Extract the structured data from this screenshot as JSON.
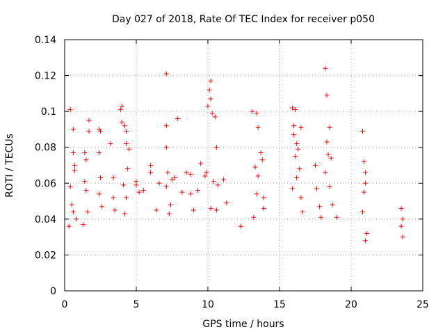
{
  "chart_data": {
    "type": "scatter",
    "title": "Day 027 of 2018, Rate Of TEC Index for receiver p050",
    "xlabel": "GPS time / hours",
    "ylabel": "ROTI / TECUs",
    "xlim": [
      0,
      25
    ],
    "ylim": [
      0,
      0.14
    ],
    "x_ticks": [
      0,
      5,
      10,
      15,
      20,
      25
    ],
    "x_tick_labels": [
      "0",
      "5",
      "10",
      "15",
      "20",
      "25"
    ],
    "y_ticks": [
      0,
      0.02,
      0.04,
      0.06,
      0.08,
      0.1,
      0.12,
      0.14
    ],
    "y_tick_labels": [
      "0",
      "0.02",
      "0.04",
      "0.06",
      "0.08",
      "0.1",
      "0.12",
      "0.14"
    ],
    "grid": true,
    "marker": "+",
    "marker_color": "#ff0000",
    "series": [
      {
        "name": "ROTI",
        "points": [
          [
            0.4,
            0.101
          ],
          [
            0.6,
            0.09
          ],
          [
            0.6,
            0.077
          ],
          [
            0.7,
            0.07
          ],
          [
            0.7,
            0.067
          ],
          [
            0.4,
            0.058
          ],
          [
            0.5,
            0.048
          ],
          [
            0.6,
            0.044
          ],
          [
            0.3,
            0.036
          ],
          [
            0.8,
            0.04
          ],
          [
            1.4,
            0.077
          ],
          [
            1.5,
            0.073
          ],
          [
            1.7,
            0.089
          ],
          [
            1.7,
            0.095
          ],
          [
            1.4,
            0.061
          ],
          [
            1.5,
            0.056
          ],
          [
            1.6,
            0.044
          ],
          [
            1.3,
            0.037
          ],
          [
            2.4,
            0.09
          ],
          [
            2.5,
            0.089
          ],
          [
            2.4,
            0.077
          ],
          [
            2.5,
            0.063
          ],
          [
            2.4,
            0.054
          ],
          [
            2.6,
            0.047
          ],
          [
            3.2,
            0.082
          ],
          [
            3.4,
            0.063
          ],
          [
            3.4,
            0.052
          ],
          [
            3.5,
            0.045
          ],
          [
            3.9,
            0.101
          ],
          [
            4.0,
            0.103
          ],
          [
            4.0,
            0.094
          ],
          [
            4.2,
            0.092
          ],
          [
            4.3,
            0.089
          ],
          [
            4.3,
            0.082
          ],
          [
            4.5,
            0.079
          ],
          [
            4.4,
            0.068
          ],
          [
            4.1,
            0.059
          ],
          [
            4.3,
            0.052
          ],
          [
            4.2,
            0.043
          ],
          [
            5.0,
            0.061
          ],
          [
            5.0,
            0.059
          ],
          [
            5.2,
            0.055
          ],
          [
            5.5,
            0.056
          ],
          [
            6.0,
            0.07
          ],
          [
            6.0,
            0.066
          ],
          [
            6.6,
            0.06
          ],
          [
            6.4,
            0.045
          ],
          [
            7.1,
            0.121
          ],
          [
            7.1,
            0.092
          ],
          [
            7.1,
            0.08
          ],
          [
            7.2,
            0.066
          ],
          [
            7.1,
            0.058
          ],
          [
            7.5,
            0.062
          ],
          [
            7.7,
            0.063
          ],
          [
            7.9,
            0.096
          ],
          [
            7.3,
            0.043
          ],
          [
            7.4,
            0.048
          ],
          [
            8.2,
            0.055
          ],
          [
            8.5,
            0.066
          ],
          [
            8.8,
            0.065
          ],
          [
            8.8,
            0.054
          ],
          [
            9.0,
            0.045
          ],
          [
            9.3,
            0.056
          ],
          [
            9.5,
            0.071
          ],
          [
            9.8,
            0.064
          ],
          [
            9.9,
            0.066
          ],
          [
            10.1,
            0.112
          ],
          [
            10.2,
            0.117
          ],
          [
            10.2,
            0.107
          ],
          [
            10.3,
            0.099
          ],
          [
            10.0,
            0.103
          ],
          [
            10.5,
            0.097
          ],
          [
            10.6,
            0.08
          ],
          [
            10.4,
            0.061
          ],
          [
            10.7,
            0.059
          ],
          [
            10.2,
            0.046
          ],
          [
            10.6,
            0.045
          ],
          [
            11.1,
            0.062
          ],
          [
            11.3,
            0.049
          ],
          [
            12.3,
            0.036
          ],
          [
            13.1,
            0.1
          ],
          [
            13.4,
            0.099
          ],
          [
            13.5,
            0.091
          ],
          [
            13.7,
            0.077
          ],
          [
            13.8,
            0.073
          ],
          [
            13.3,
            0.069
          ],
          [
            13.5,
            0.064
          ],
          [
            13.4,
            0.054
          ],
          [
            13.9,
            0.052
          ],
          [
            13.9,
            0.046
          ],
          [
            13.2,
            0.041
          ],
          [
            15.9,
            0.102
          ],
          [
            16.1,
            0.101
          ],
          [
            16.0,
            0.092
          ],
          [
            16.0,
            0.087
          ],
          [
            16.2,
            0.082
          ],
          [
            16.3,
            0.079
          ],
          [
            16.1,
            0.075
          ],
          [
            16.4,
            0.068
          ],
          [
            16.2,
            0.063
          ],
          [
            15.9,
            0.057
          ],
          [
            16.5,
            0.052
          ],
          [
            16.6,
            0.044
          ],
          [
            16.5,
            0.091
          ],
          [
            17.5,
            0.07
          ],
          [
            17.6,
            0.057
          ],
          [
            17.8,
            0.047
          ],
          [
            17.9,
            0.041
          ],
          [
            18.2,
            0.124
          ],
          [
            18.3,
            0.109
          ],
          [
            18.5,
            0.091
          ],
          [
            18.3,
            0.083
          ],
          [
            18.4,
            0.076
          ],
          [
            18.6,
            0.074
          ],
          [
            18.2,
            0.066
          ],
          [
            18.5,
            0.058
          ],
          [
            18.7,
            0.048
          ],
          [
            19.0,
            0.041
          ],
          [
            20.8,
            0.089
          ],
          [
            20.9,
            0.072
          ],
          [
            21.0,
            0.066
          ],
          [
            21.0,
            0.06
          ],
          [
            20.9,
            0.055
          ],
          [
            20.8,
            0.044
          ],
          [
            21.1,
            0.032
          ],
          [
            21.0,
            0.028
          ],
          [
            23.5,
            0.046
          ],
          [
            23.6,
            0.04
          ],
          [
            23.5,
            0.036
          ],
          [
            23.6,
            0.03
          ]
        ]
      }
    ]
  }
}
